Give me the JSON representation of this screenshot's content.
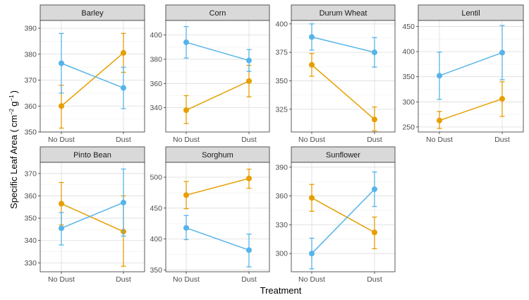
{
  "chart_data": {
    "type": "line",
    "xlabel": "Treatment",
    "ylabel_main": "Specific Leaf Area (",
    "ylabel_unit1": "cm",
    "ylabel_exp1": "−2",
    "ylabel_unit2": "g",
    "ylabel_exp2": "−1",
    "ylabel_close": ")",
    "categories": [
      "No Dust",
      "Dust"
    ],
    "series_colors": [
      "#E69F00",
      "#56B4E9"
    ],
    "panels": [
      {
        "title": "Barley",
        "ylim": [
          350,
          393
        ],
        "yticks": [
          350,
          360,
          370,
          380,
          390
        ],
        "series": [
          {
            "values": [
              360,
              380.5
            ],
            "lower": [
              351.5,
              373
            ],
            "upper": [
              368,
              388
            ]
          },
          {
            "values": [
              376.5,
              367
            ],
            "lower": [
              365,
              359
            ],
            "upper": [
              388,
              375
            ]
          }
        ]
      },
      {
        "title": "Corn",
        "ylim": [
          320,
          412
        ],
        "yticks": [
          340,
          360,
          380,
          400
        ],
        "series": [
          {
            "values": [
              338,
              362
            ],
            "lower": [
              327,
              349
            ],
            "upper": [
              350,
              375
            ]
          },
          {
            "values": [
              394,
              379
            ],
            "lower": [
              381,
              370
            ],
            "upper": [
              407,
              388
            ]
          }
        ]
      },
      {
        "title": "Durum Wheat",
        "ylim": [
          305,
          403
        ],
        "yticks": [
          325,
          350,
          375,
          400
        ],
        "series": [
          {
            "values": [
              364,
              316
            ],
            "lower": [
              354,
              306
            ],
            "upper": [
              374,
              327
            ]
          },
          {
            "values": [
              388.5,
              375
            ],
            "lower": [
              377,
              362
            ],
            "upper": [
              400,
              388
            ]
          }
        ]
      },
      {
        "title": "Lentil",
        "ylim": [
          240,
          462
        ],
        "yticks": [
          250,
          300,
          350,
          400,
          450
        ],
        "series": [
          {
            "values": [
              263,
              306
            ],
            "lower": [
              247,
              271
            ],
            "upper": [
              281,
              340
            ]
          },
          {
            "values": [
              352,
              398
            ],
            "lower": [
              305,
              344
            ],
            "upper": [
              399,
              452
            ]
          }
        ]
      },
      {
        "title": "Pinto Bean",
        "ylim": [
          326,
          375
        ],
        "yticks": [
          330,
          340,
          350,
          360,
          370
        ],
        "series": [
          {
            "values": [
              356.5,
              344
            ],
            "lower": [
              347,
              328.5
            ],
            "upper": [
              366,
              360
            ]
          },
          {
            "values": [
              345.5,
              357
            ],
            "lower": [
              338,
              342
            ],
            "upper": [
              352.5,
              372
            ]
          }
        ]
      },
      {
        "title": "Sorghum",
        "ylim": [
          347,
          524
        ],
        "yticks": [
          350,
          400,
          450,
          500
        ],
        "series": [
          {
            "values": [
              471,
              498
            ],
            "lower": [
              449,
              482
            ],
            "upper": [
              493,
              513
            ]
          },
          {
            "values": [
              418,
              382
            ],
            "lower": [
              399,
              355
            ],
            "upper": [
              438,
              408
            ]
          }
        ]
      },
      {
        "title": "Sunflower",
        "ylim": [
          281,
          395
        ],
        "yticks": [
          300,
          330,
          360,
          390
        ],
        "series": [
          {
            "values": [
              358,
              322
            ],
            "lower": [
              344,
              305
            ],
            "upper": [
              372,
              338
            ]
          },
          {
            "values": [
              300,
              367
            ],
            "lower": [
              284,
              349
            ],
            "upper": [
              316,
              385
            ]
          }
        ]
      }
    ]
  }
}
